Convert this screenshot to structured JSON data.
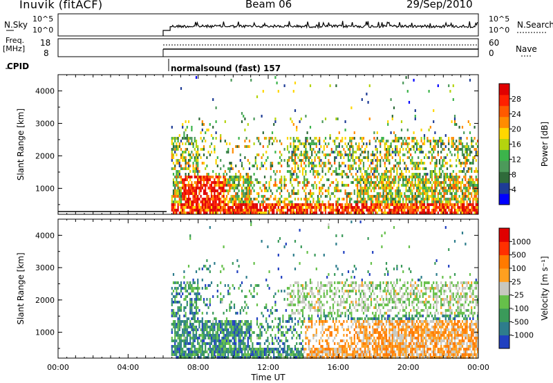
{
  "header": {
    "title": "Inuvik (fitACF)",
    "beam": "Beam 06",
    "date": "29/Sep/2010"
  },
  "strip_panels": {
    "nsky_label": "N.Sky",
    "nsearch_label": "N.Search",
    "nsky_ticks": [
      "10^5",
      "10^0"
    ],
    "nsearch_ticks": [
      "10^5",
      "10^0"
    ],
    "freq_label": "Freq.",
    "freq_unit": "[MHz]",
    "freq_ticks": [
      "18",
      "8"
    ],
    "nave_label": "Nave",
    "nave_ticks": [
      "60",
      "0"
    ],
    "cpid_label": "CPID",
    "cpid_text": "normalsound (fast) 157"
  },
  "chart_data": [
    {
      "type": "heatmap",
      "name": "power",
      "ylabel": "Slant Range [km]",
      "yticks": [
        "4000",
        "3000",
        "2000",
        "1000"
      ],
      "ylim": [
        200,
        4500
      ],
      "xlim_hours": [
        0,
        24
      ],
      "colorbar": {
        "label": "Power [dB]",
        "ticks": [
          "28",
          "24",
          "20",
          "16",
          "12",
          "8",
          "4"
        ],
        "colors": [
          "#0000ff",
          "#1e3c96",
          "#2f6b3a",
          "#4c9a5a",
          "#3cb44b",
          "#b4d40e",
          "#ffd700",
          "#ff8c00",
          "#ff5a00",
          "#ff2000",
          "#e00000"
        ]
      },
      "data_start_hour": 6.0
    },
    {
      "type": "heatmap",
      "name": "velocity",
      "ylabel": "Slant Range [km]",
      "yticks": [
        "4000",
        "3000",
        "2000",
        "1000"
      ],
      "ylim": [
        200,
        4500
      ],
      "xlim_hours": [
        0,
        24
      ],
      "colorbar": {
        "label": "Velocity [m s⁻¹]",
        "ticks": [
          "1000",
          "500",
          "100",
          "25",
          "-25",
          "-100",
          "-500",
          "-1000"
        ],
        "colors": [
          "#2040c0",
          "#2e7d8c",
          "#3a9a5a",
          "#66c04a",
          "#c8c8c0",
          "#ffa020",
          "#ff7a00",
          "#ff3000",
          "#e00000"
        ]
      },
      "data_start_hour": 6.0
    }
  ],
  "x_axis": {
    "label": "Time UT",
    "ticks": [
      "00:00",
      "04:00",
      "08:00",
      "12:00",
      "16:00",
      "20:00",
      "00:00"
    ]
  }
}
